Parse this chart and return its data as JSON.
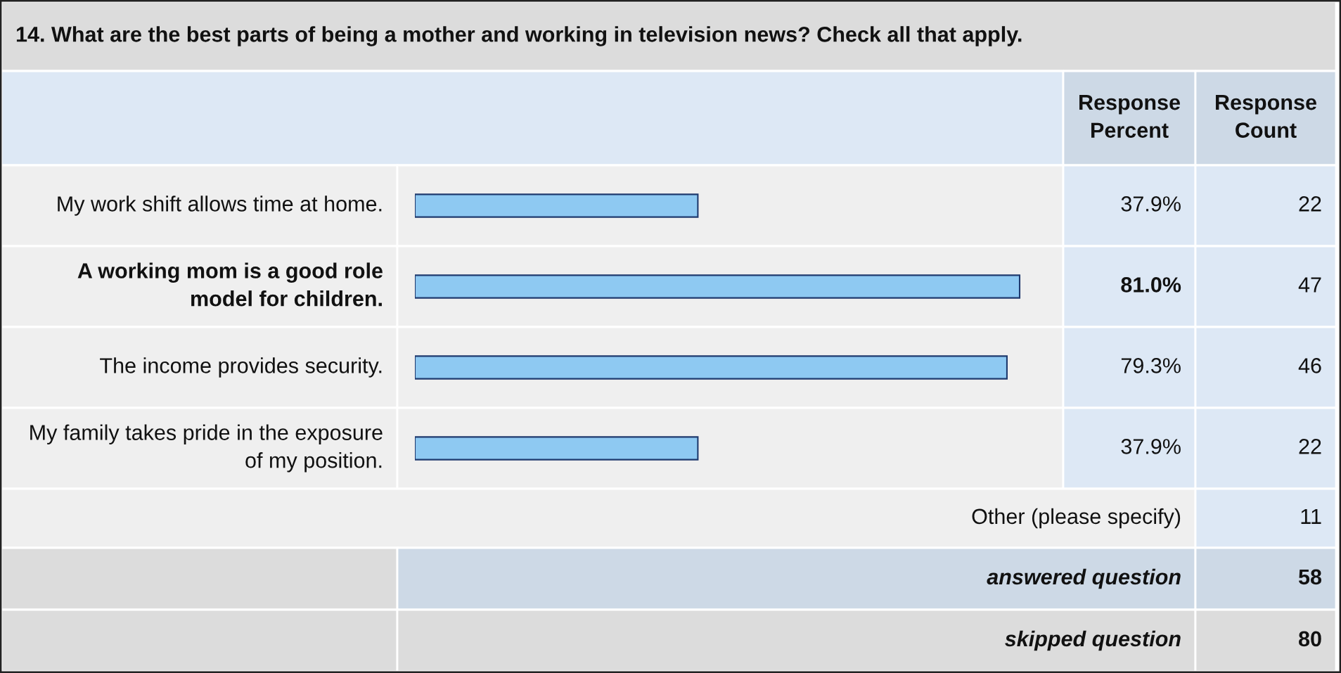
{
  "chart_data": {
    "type": "bar",
    "orientation": "horizontal",
    "title": "14. What are the best parts of being a mother and working in television news? Check all that apply.",
    "categories": [
      "My work shift allows time at home.",
      "A working mom is a good role model for children.",
      "The income provides security.",
      "My family takes pride in the exposure of my position."
    ],
    "values": [
      37.9,
      81.0,
      79.3,
      37.9
    ],
    "value_labels": [
      "37.9%",
      "81.0%",
      "79.3%",
      "37.9%"
    ],
    "color": "#8ec9f2",
    "annotations": [
      "Response Percent",
      "Response Count",
      "22",
      "47",
      "46",
      "22",
      "Other (please specify)",
      "11",
      "answered question",
      "58",
      "skipped question",
      "80"
    ]
  }
}
